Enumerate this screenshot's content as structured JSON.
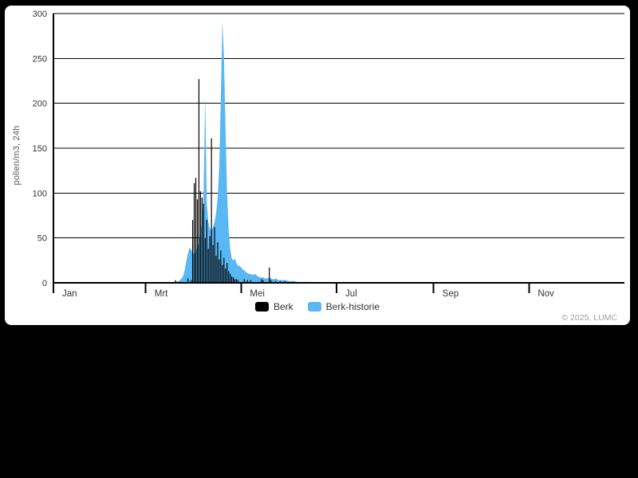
{
  "page": {
    "background_color": "#000000",
    "card_color": "#ffffff"
  },
  "footer": {
    "copyright": "© 2025, LUMC"
  },
  "legend": {
    "items": [
      {
        "label": "Berk",
        "color": "#000000"
      },
      {
        "label": "Berk-historie",
        "color": "#59B7F3"
      }
    ]
  },
  "chart_data": {
    "type": "mixed",
    "title": "",
    "xlabel": "",
    "ylabel": "pollen/m3, 24h",
    "ylim": [
      0,
      300
    ],
    "y_ticks": [
      0,
      50,
      100,
      150,
      200,
      250,
      300
    ],
    "x_unit": "day_of_year",
    "x_range": [
      0,
      365
    ],
    "grid": true,
    "legend_position": "bottom-center",
    "x_ticks": [
      {
        "label": "Jan",
        "day": 0
      },
      {
        "label": "Mrt",
        "day": 59
      },
      {
        "label": "Mei",
        "day": 120
      },
      {
        "label": "Jul",
        "day": 181
      },
      {
        "label": "Sep",
        "day": 243
      },
      {
        "label": "Nov",
        "day": 304
      }
    ],
    "series": [
      {
        "name": "Berk-historie",
        "type": "area",
        "color": "#59B7F3",
        "points": [
          [
            76,
            0
          ],
          [
            78,
            1
          ],
          [
            80,
            2
          ],
          [
            81,
            3
          ],
          [
            82,
            5
          ],
          [
            83,
            8
          ],
          [
            84,
            15
          ],
          [
            85,
            25
          ],
          [
            86,
            33
          ],
          [
            87,
            39
          ],
          [
            88,
            37
          ],
          [
            89,
            33
          ],
          [
            90,
            32
          ],
          [
            91,
            35
          ],
          [
            92,
            40
          ],
          [
            93,
            45
          ],
          [
            94,
            55
          ],
          [
            95,
            70
          ],
          [
            96,
            100
          ],
          [
            97,
            209
          ],
          [
            98,
            90
          ],
          [
            99,
            68
          ],
          [
            100,
            60
          ],
          [
            101,
            58
          ],
          [
            102,
            62
          ],
          [
            103,
            68
          ],
          [
            104,
            78
          ],
          [
            105,
            95
          ],
          [
            106,
            130
          ],
          [
            107,
            205
          ],
          [
            108,
            291
          ],
          [
            109,
            252
          ],
          [
            110,
            172
          ],
          [
            111,
            100
          ],
          [
            112,
            60
          ],
          [
            113,
            38
          ],
          [
            114,
            27
          ],
          [
            115,
            25
          ],
          [
            116,
            27
          ],
          [
            117,
            22
          ],
          [
            118,
            19
          ],
          [
            119,
            19
          ],
          [
            120,
            17
          ],
          [
            121,
            15
          ],
          [
            122,
            14
          ],
          [
            123,
            12
          ],
          [
            124,
            11
          ],
          [
            125,
            10
          ],
          [
            126,
            10
          ],
          [
            127,
            9
          ],
          [
            128,
            9
          ],
          [
            129,
            10
          ],
          [
            130,
            8
          ],
          [
            131,
            7
          ],
          [
            132,
            6
          ],
          [
            133,
            6
          ],
          [
            134,
            6
          ],
          [
            135,
            5
          ],
          [
            136,
            5
          ],
          [
            137,
            5
          ],
          [
            138,
            6
          ],
          [
            139,
            5
          ],
          [
            140,
            4
          ],
          [
            141,
            4
          ],
          [
            142,
            5
          ],
          [
            143,
            4
          ],
          [
            144,
            3
          ],
          [
            145,
            3
          ],
          [
            146,
            3
          ],
          [
            147,
            3
          ],
          [
            148,
            3
          ],
          [
            149,
            3
          ],
          [
            150,
            2
          ],
          [
            152,
            2
          ],
          [
            154,
            2
          ],
          [
            156,
            1
          ],
          [
            158,
            1
          ],
          [
            160,
            1
          ],
          [
            162,
            1
          ],
          [
            164,
            1
          ],
          [
            166,
            0
          ]
        ]
      },
      {
        "name": "Berk",
        "type": "bar",
        "color": "#000000",
        "points": [
          [
            78,
            3
          ],
          [
            86,
            5
          ],
          [
            88,
            3
          ],
          [
            89,
            70
          ],
          [
            90,
            111
          ],
          [
            91,
            117
          ],
          [
            92,
            93
          ],
          [
            93,
            227
          ],
          [
            94,
            102
          ],
          [
            95,
            95
          ],
          [
            96,
            88
          ],
          [
            97,
            50
          ],
          [
            98,
            70
          ],
          [
            99,
            38
          ],
          [
            100,
            52
          ],
          [
            101,
            161
          ],
          [
            102,
            42
          ],
          [
            103,
            62
          ],
          [
            104,
            30
          ],
          [
            105,
            45
          ],
          [
            106,
            26
          ],
          [
            107,
            36
          ],
          [
            108,
            20
          ],
          [
            109,
            28
          ],
          [
            110,
            16
          ],
          [
            111,
            22
          ],
          [
            112,
            13
          ],
          [
            113,
            10
          ],
          [
            114,
            7
          ],
          [
            115,
            6
          ],
          [
            116,
            4
          ],
          [
            117,
            4
          ],
          [
            118,
            3
          ],
          [
            122,
            4
          ],
          [
            124,
            3
          ],
          [
            126,
            3
          ],
          [
            133,
            4
          ],
          [
            134,
            3
          ],
          [
            138,
            17
          ],
          [
            139,
            3
          ],
          [
            142,
            2
          ],
          [
            145,
            2
          ],
          [
            148,
            2
          ],
          [
            153,
            1
          ]
        ]
      }
    ]
  }
}
